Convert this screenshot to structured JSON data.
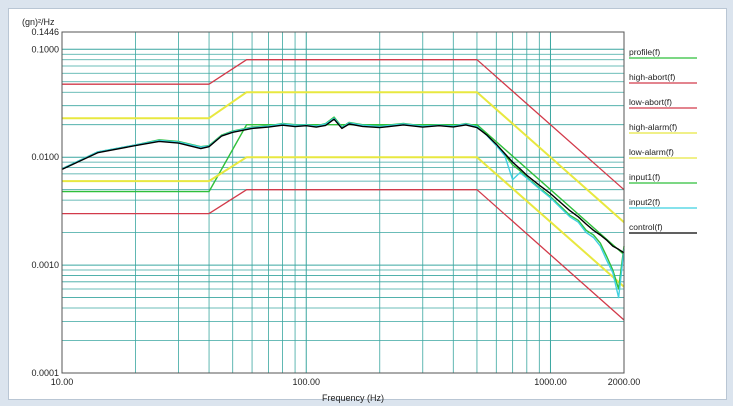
{
  "chart_data": {
    "type": "line",
    "ylabel": "(gn)²/Hz",
    "xlabel": "Frequency (Hz)",
    "x_scale": "log",
    "y_scale": "log",
    "xlim": [
      10,
      2000
    ],
    "ylim": [
      0.0001,
      0.1446
    ],
    "x_tick_labels": [
      {
        "value": 10,
        "label": "10.00"
      },
      {
        "value": 100,
        "label": "100.00"
      },
      {
        "value": 1000,
        "label": "1000.00"
      },
      {
        "value": 2000,
        "label": "2000.00"
      }
    ],
    "y_tick_labels": [
      {
        "value": 0.1446,
        "label": "0.1446"
      },
      {
        "value": 0.1,
        "label": "0.1000"
      },
      {
        "value": 0.01,
        "label": "0.0100"
      },
      {
        "value": 0.001,
        "label": "0.0010"
      },
      {
        "value": 0.0001,
        "label": "0.0001"
      }
    ],
    "grid": true,
    "legend_position": "right",
    "series": [
      {
        "name": "profile(f)",
        "color": "#2fbf3a",
        "x": [
          10,
          40,
          57,
          500,
          2000
        ],
        "y": [
          0.0048,
          0.0048,
          0.02,
          0.02,
          0.00125
        ]
      },
      {
        "name": "high-abort(f)",
        "color": "#d23a4a",
        "x": [
          10,
          40,
          57,
          500,
          2000
        ],
        "y": [
          0.0475,
          0.0475,
          0.08,
          0.08,
          0.005
        ]
      },
      {
        "name": "low-abort(f)",
        "color": "#d23a4a",
        "x": [
          10,
          40,
          57,
          500,
          2000
        ],
        "y": [
          0.003,
          0.003,
          0.005,
          0.005,
          0.00031
        ]
      },
      {
        "name": "high-alarm(f)",
        "color": "#e8e840",
        "x": [
          10,
          40,
          57,
          500,
          2000
        ],
        "y": [
          0.023,
          0.023,
          0.04,
          0.04,
          0.0025
        ]
      },
      {
        "name": "low-alarm(f)",
        "color": "#e8e840",
        "x": [
          10,
          40,
          57,
          500,
          2000
        ],
        "y": [
          0.006,
          0.006,
          0.01,
          0.01,
          0.00063
        ]
      },
      {
        "name": "input1(f)",
        "color": "#2fbf3a",
        "x": [
          10,
          14,
          20,
          25,
          30,
          37,
          40,
          45,
          50,
          60,
          70,
          80,
          90,
          100,
          110,
          120,
          130,
          140,
          150,
          170,
          200,
          250,
          300,
          350,
          400,
          450,
          500,
          550,
          600,
          650,
          700,
          750,
          800,
          900,
          1000,
          1100,
          1200,
          1300,
          1400,
          1500,
          1600,
          1700,
          1800,
          1900,
          2000
        ],
        "y": [
          0.0078,
          0.0112,
          0.013,
          0.0145,
          0.014,
          0.0125,
          0.0128,
          0.016,
          0.0175,
          0.019,
          0.0195,
          0.0205,
          0.02,
          0.02,
          0.0195,
          0.0205,
          0.0235,
          0.019,
          0.021,
          0.02,
          0.0195,
          0.0205,
          0.0195,
          0.02,
          0.0195,
          0.0205,
          0.0195,
          0.016,
          0.013,
          0.0105,
          0.0085,
          0.0075,
          0.0065,
          0.0052,
          0.0043,
          0.0035,
          0.0029,
          0.0026,
          0.0021,
          0.0019,
          0.0016,
          0.0012,
          0.0009,
          0.0006,
          0.0015
        ]
      },
      {
        "name": "input2(f)",
        "color": "#3fd0e0",
        "x": [
          10,
          14,
          20,
          25,
          30,
          37,
          40,
          45,
          50,
          60,
          70,
          80,
          90,
          100,
          110,
          120,
          130,
          140,
          150,
          170,
          200,
          250,
          300,
          350,
          400,
          450,
          500,
          550,
          600,
          650,
          700,
          750,
          800,
          900,
          1000,
          1100,
          1200,
          1300,
          1400,
          1500,
          1600,
          1700,
          1800,
          1900,
          2000
        ],
        "y": [
          0.0078,
          0.0112,
          0.013,
          0.0143,
          0.0138,
          0.0124,
          0.0127,
          0.0158,
          0.0173,
          0.0188,
          0.0194,
          0.0203,
          0.0198,
          0.0199,
          0.0194,
          0.0203,
          0.023,
          0.0188,
          0.0208,
          0.0198,
          0.0193,
          0.0203,
          0.0194,
          0.0198,
          0.0194,
          0.0203,
          0.0193,
          0.0158,
          0.0128,
          0.0103,
          0.0062,
          0.0072,
          0.0064,
          0.0051,
          0.0042,
          0.0034,
          0.0028,
          0.0025,
          0.002,
          0.0018,
          0.0015,
          0.0011,
          0.00085,
          0.0005,
          0.0014
        ]
      },
      {
        "name": "control(f)",
        "color": "#000000",
        "x": [
          10,
          14,
          20,
          25,
          30,
          37,
          40,
          45,
          50,
          60,
          70,
          80,
          90,
          100,
          110,
          120,
          130,
          140,
          150,
          170,
          200,
          250,
          300,
          350,
          400,
          450,
          500,
          550,
          600,
          650,
          700,
          750,
          800,
          900,
          1000,
          1100,
          1200,
          1300,
          1400,
          1500,
          1600,
          1700,
          1800,
          1900,
          2000
        ],
        "y": [
          0.0077,
          0.011,
          0.0128,
          0.014,
          0.0135,
          0.012,
          0.0125,
          0.0157,
          0.017,
          0.0185,
          0.019,
          0.0198,
          0.0192,
          0.0196,
          0.019,
          0.0197,
          0.0225,
          0.0185,
          0.0203,
          0.0193,
          0.0188,
          0.0199,
          0.019,
          0.0196,
          0.0191,
          0.0199,
          0.0188,
          0.016,
          0.0132,
          0.0108,
          0.009,
          0.0078,
          0.0068,
          0.0055,
          0.0046,
          0.0038,
          0.0032,
          0.0028,
          0.0024,
          0.0021,
          0.0019,
          0.0017,
          0.0015,
          0.0014,
          0.0013
        ]
      }
    ]
  }
}
